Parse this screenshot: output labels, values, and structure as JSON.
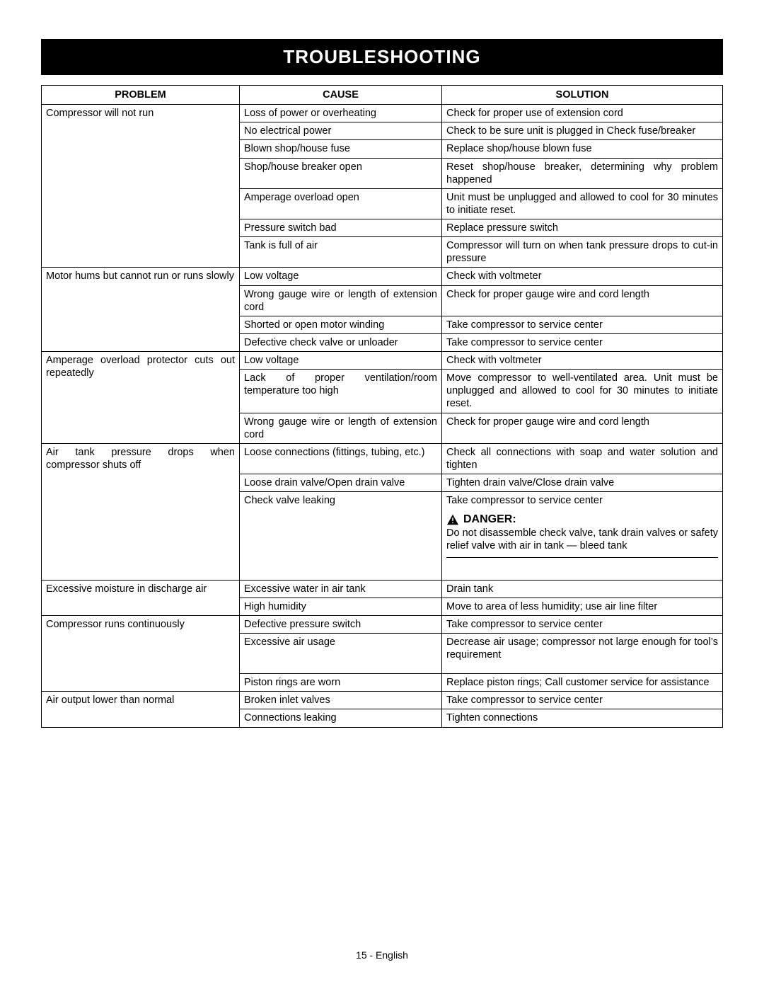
{
  "title": "TROUBLESHOOTING",
  "columns": [
    "PROBLEM",
    "CAUSE",
    "SOLUTION"
  ],
  "footer": "15 - English",
  "danger_label": "DANGER:",
  "danger_text": "Do not disassemble check valve, tank drain valves or safety relief valve with air in tank — bleed tank",
  "rows": [
    {
      "problem": "Compressor will not run",
      "problem_justify": false,
      "items": [
        {
          "cause": "Loss of power or overheating",
          "solution": "Check for proper use of extension cord",
          "sol_justify": true
        },
        {
          "cause": "No electrical power",
          "solution": "Check to be sure unit is plugged in Check fuse/breaker",
          "sol_justify": true
        },
        {
          "cause": "Blown shop/house fuse",
          "solution": "Replace shop/house blown fuse"
        },
        {
          "cause": "Shop/house breaker open",
          "solution": "Reset shop/house breaker, determining why problem happened",
          "sol_justify": true
        },
        {
          "cause": "Amperage overload open",
          "solution": "Unit must be unplugged and allowed to cool for 30 minutes to initiate reset.",
          "sol_justify": true
        },
        {
          "cause": "Pressure switch bad",
          "solution": "Replace pressure switch"
        },
        {
          "cause": "Tank is full of air",
          "solution": "Compressor will turn on when tank pressure drops to cut-in pressure",
          "sol_justify": true
        }
      ]
    },
    {
      "problem": "Motor hums but cannot run or runs slowly",
      "problem_justify": true,
      "items": [
        {
          "cause": "Low voltage",
          "solution": "Check with voltmeter"
        },
        {
          "cause": "Wrong gauge wire or length of extension cord",
          "cause_justify": true,
          "solution": "Check for proper gauge wire and cord length",
          "sol_justify": true
        },
        {
          "cause": "Shorted or open motor winding",
          "solution": "Take compressor to service center"
        },
        {
          "cause": "Defective check valve or unloader",
          "solution": "Take compressor to service center"
        }
      ]
    },
    {
      "problem": "Amperage overload protector cuts out repeatedly",
      "problem_justify": true,
      "items": [
        {
          "cause": "Low voltage",
          "solution": "Check with voltmeter"
        },
        {
          "cause": "Lack of proper ventilation/room temperature too high",
          "cause_justify": true,
          "solution": "Move compressor to well-ventilated area. Unit must be unplugged and allowed to cool for 30 minutes to initiate reset.",
          "sol_justify": true
        },
        {
          "cause": "Wrong gauge wire or length of extension cord",
          "cause_justify": true,
          "solution": "Check for proper gauge wire and cord length",
          "sol_justify": true
        }
      ]
    },
    {
      "problem": "Air tank pressure drops when compressor shuts off",
      "problem_justify": true,
      "items": [
        {
          "cause": "Loose connections (fittings, tubing, etc.)",
          "cause_justify": true,
          "solution": "Check all connections with soap and water solution and tighten",
          "sol_justify": true
        },
        {
          "cause": "Loose drain valve/Open drain valve",
          "solution": "Tighten drain valve/Close drain valve"
        },
        {
          "cause": "Check valve leaking",
          "solution": "Take compressor to service center",
          "danger_after": true
        }
      ]
    },
    {
      "problem": "Excessive moisture in discharge air",
      "problem_justify": false,
      "items": [
        {
          "cause": "Excessive water in air tank",
          "solution": "Drain tank"
        },
        {
          "cause": "High humidity",
          "solution": "Move to area of less humidity; use air line filter",
          "sol_justify": true
        }
      ]
    },
    {
      "problem": "Compressor runs continuously",
      "problem_justify": false,
      "items": [
        {
          "cause": "Defective pressure switch",
          "solution": "Take compressor to service center"
        },
        {
          "cause": "Excessive air usage",
          "solution": "Decrease air usage; compressor not large enough for tool’s requirement",
          "sol_justify": true,
          "gap_after": true
        },
        {
          "cause": "Piston rings are worn",
          "solution": "Replace piston rings; Call customer service for assistance",
          "sol_justify": true
        }
      ]
    },
    {
      "problem": "Air output lower than normal",
      "problem_justify": false,
      "items": [
        {
          "cause": "Broken inlet valves",
          "solution": "Take compressor to service center"
        },
        {
          "cause": "Connections leaking",
          "solution": "Tighten connections"
        }
      ]
    }
  ]
}
